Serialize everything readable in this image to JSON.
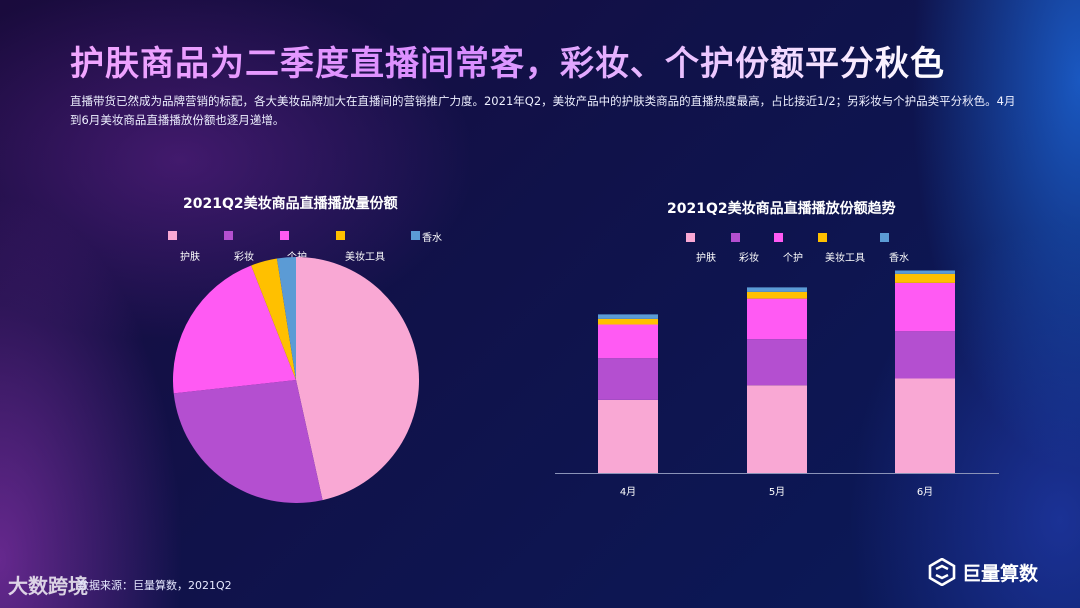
{
  "page": {
    "title": "护肤商品为二季度直播间常客，彩妆、个护份额平分秋色",
    "description": "直播带货已然成为品牌营销的标配，各大美妆品牌加大在直播间的营销推广力度。2021年Q2，美妆产品中的护肤类商品的直播热度最高，占比接近1/2；另彩妆与个护品类平分秋色。4月到6月美妆商品直播播放份额也逐月递增。",
    "source": "数据来源：巨量算数，2021Q2",
    "watermark": "大数跨境",
    "brand": "巨量算数"
  },
  "colors": {
    "护肤": "#f9a8d4",
    "彩妆": "#b44fd0",
    "个护": "#ff5af3",
    "美妆工具": "#ffc000",
    "香水": "#5b9bd5"
  },
  "chart_data": [
    {
      "type": "pie",
      "title": "2021Q2美妆商品直播播放量份额",
      "legend": [
        "护肤",
        "彩妆",
        "个护",
        "美妆工具",
        "香水"
      ],
      "legend_position": "top",
      "values": [
        47,
        27,
        21,
        3.5,
        2.5
      ]
    },
    {
      "type": "bar",
      "stacked": true,
      "title": "2021Q2美妆商品直播播放份额趋势",
      "legend": [
        "护肤",
        "彩妆",
        "个护",
        "美妆工具",
        "香水"
      ],
      "legend_position": "top",
      "categories": [
        "4月",
        "5月",
        "6月"
      ],
      "series": [
        {
          "name": "护肤",
          "values": [
            65,
            78,
            84
          ]
        },
        {
          "name": "彩妆",
          "values": [
            37,
            41,
            42
          ]
        },
        {
          "name": "个护",
          "values": [
            30,
            36,
            43
          ]
        },
        {
          "name": "美妆工具",
          "values": [
            5,
            6,
            8
          ]
        },
        {
          "name": "香水",
          "values": [
            4,
            4,
            3
          ]
        }
      ],
      "ylim": [
        0,
        200
      ],
      "grid": false
    }
  ]
}
